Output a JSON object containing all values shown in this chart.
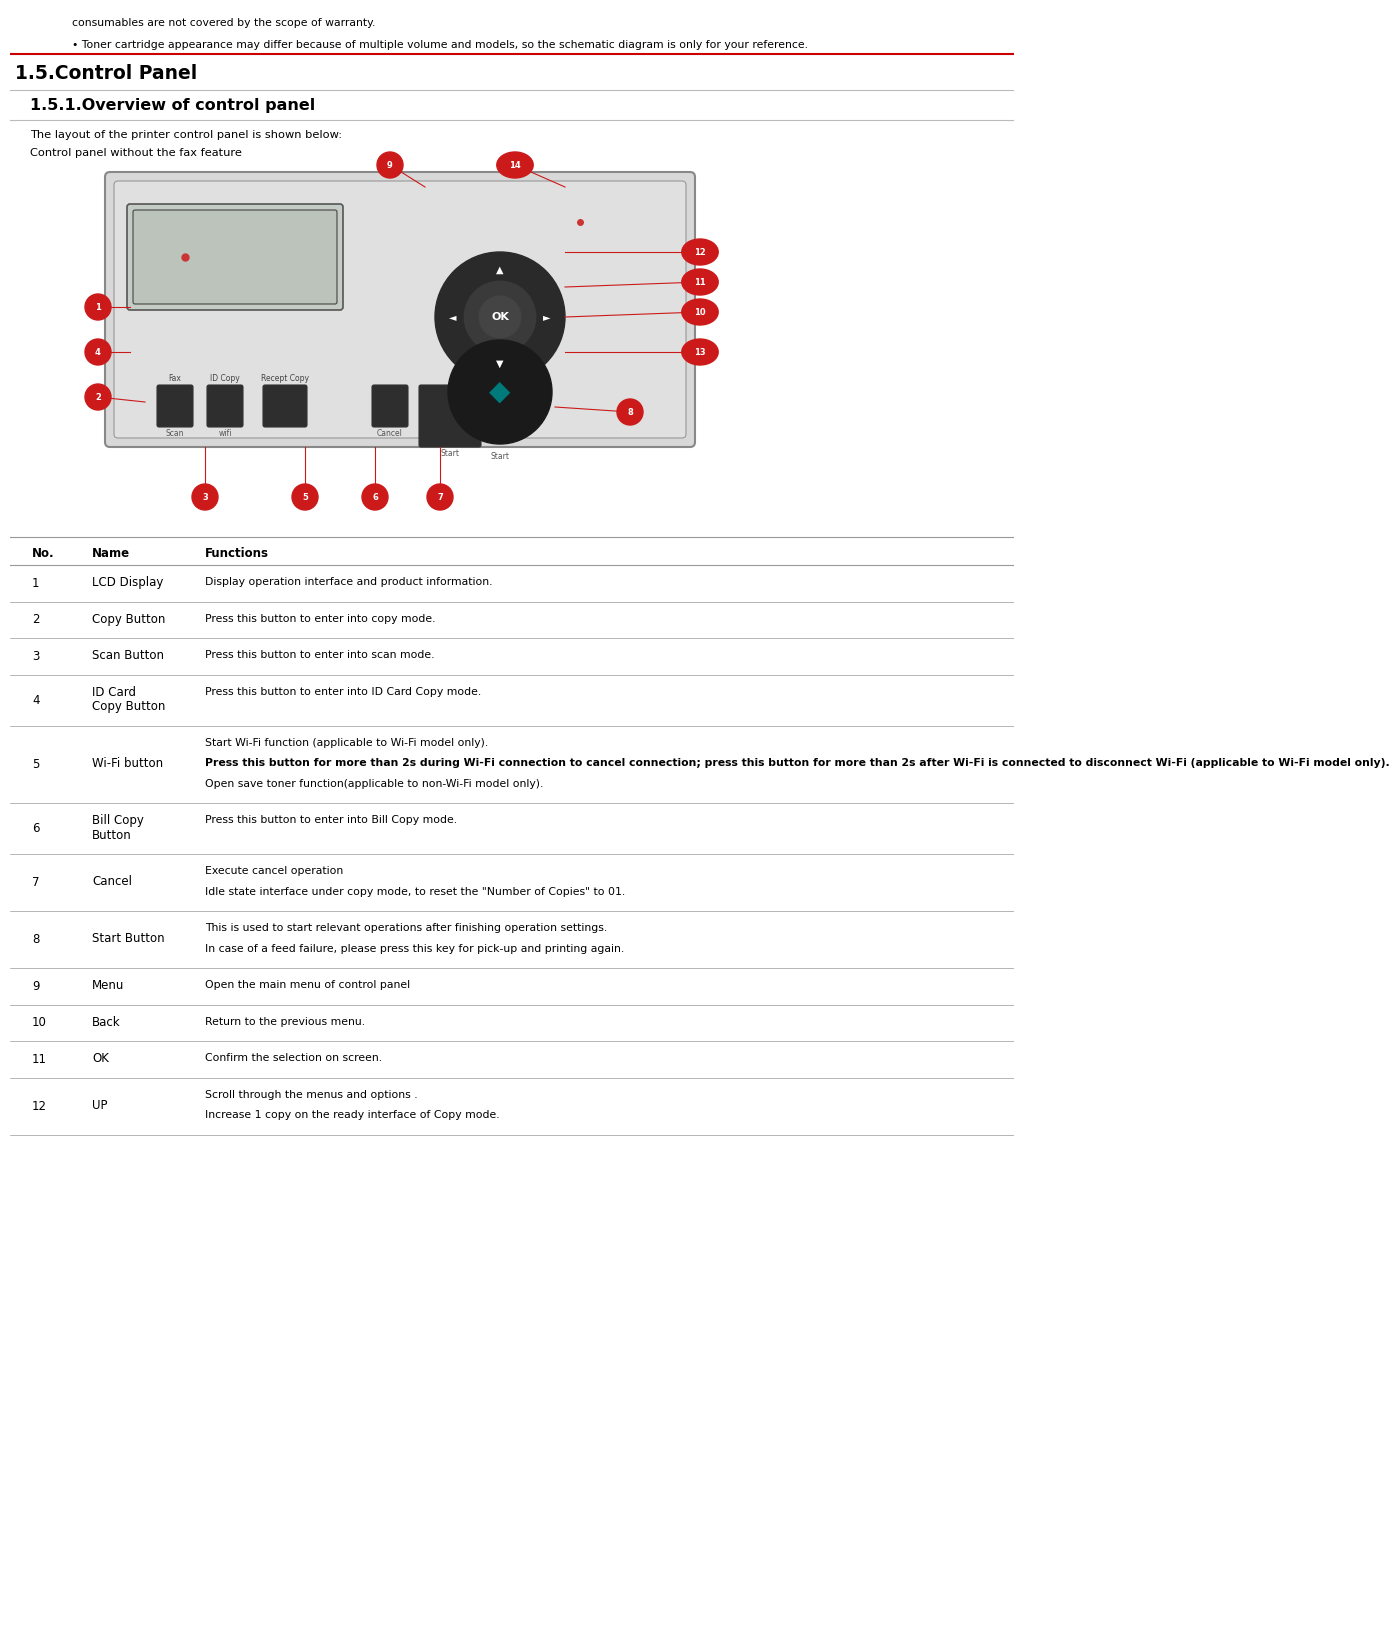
{
  "bg_color": "#ffffff",
  "title1": "1.5.Control Panel",
  "title2": "1.5.1.Overview of control panel",
  "intro1": "The layout of the printer control panel is shown below:",
  "intro2": "Control panel without the fax feature",
  "header_note1": "consumables are not covered by the scope of warranty.",
  "header_note2": "• Toner cartridge appearance may differ because of multiple volume and models, so the schematic diagram is only for your reference.",
  "table_headers": [
    "No.",
    "Name",
    "Functions"
  ],
  "table_rows": [
    {
      "no": "1",
      "name": [
        "LCD Display"
      ],
      "func": [
        {
          "text": "Display operation interface and product information.",
          "bold": false
        }
      ]
    },
    {
      "no": "2",
      "name": [
        "Copy Button"
      ],
      "func": [
        {
          "text": "Press this button to enter into copy mode.",
          "bold": false
        }
      ]
    },
    {
      "no": "3",
      "name": [
        "Scan Button"
      ],
      "func": [
        {
          "text": "Press this button to enter into scan mode.",
          "bold": false
        }
      ]
    },
    {
      "no": "4",
      "name": [
        "ID Card",
        "Copy Button"
      ],
      "func": [
        {
          "text": "Press this button to enter into ID Card Copy mode.",
          "bold": false
        }
      ]
    },
    {
      "no": "5",
      "name": [
        "Wi-Fi button"
      ],
      "func": [
        {
          "text": "Start Wi-Fi function (applicable to Wi-Fi model only).",
          "bold": false
        },
        {
          "text": "",
          "bold": false
        },
        {
          "text": "Press this button for more than 2s during Wi-Fi connection to cancel connection; press this button for more than 2s after Wi-Fi is connected to disconnect Wi-Fi (applicable to Wi-Fi model only).",
          "bold": true
        },
        {
          "text": "",
          "bold": false
        },
        {
          "text": "Open save toner function(applicable to non-Wi-Fi model only).",
          "bold": false
        }
      ]
    },
    {
      "no": "6",
      "name": [
        "Bill Copy",
        "Button"
      ],
      "func": [
        {
          "text": "Press this button to enter into Bill Copy mode.",
          "bold": false
        }
      ]
    },
    {
      "no": "7",
      "name": [
        "Cancel"
      ],
      "func": [
        {
          "text": "Execute cancel operation",
          "bold": false
        },
        {
          "text": "",
          "bold": false
        },
        {
          "text": "Idle state interface under copy mode, to reset the \"Number of Copies\" to 01.",
          "bold": false
        }
      ]
    },
    {
      "no": "8",
      "name": [
        "Start Button"
      ],
      "func": [
        {
          "text": "This is used to start relevant operations after finishing operation settings.",
          "bold": false
        },
        {
          "text": "",
          "bold": false
        },
        {
          "text": "In case of a feed failure, please press this key for pick-up and printing again.",
          "bold": false
        }
      ]
    },
    {
      "no": "9",
      "name": [
        "Menu"
      ],
      "func": [
        {
          "text": "Open the main menu of control panel",
          "bold": false
        }
      ]
    },
    {
      "no": "10",
      "name": [
        "Back"
      ],
      "func": [
        {
          "text": "Return to the previous menu.",
          "bold": false
        }
      ]
    },
    {
      "no": "11",
      "name": [
        "OK"
      ],
      "func": [
        {
          "text": "Confirm the selection on screen.",
          "bold": false
        }
      ]
    },
    {
      "no": "12",
      "name": [
        "UP"
      ],
      "func": [
        {
          "text": "Scroll through the menus and options .",
          "bold": false
        },
        {
          "text": "",
          "bold": false
        },
        {
          "text": "Increase 1 copy on the ready interface of Copy mode.",
          "bold": false
        }
      ]
    }
  ],
  "red_line_color": "#cc0000",
  "section_line_color": "#bbbbbb",
  "table_line_color": "#999999"
}
